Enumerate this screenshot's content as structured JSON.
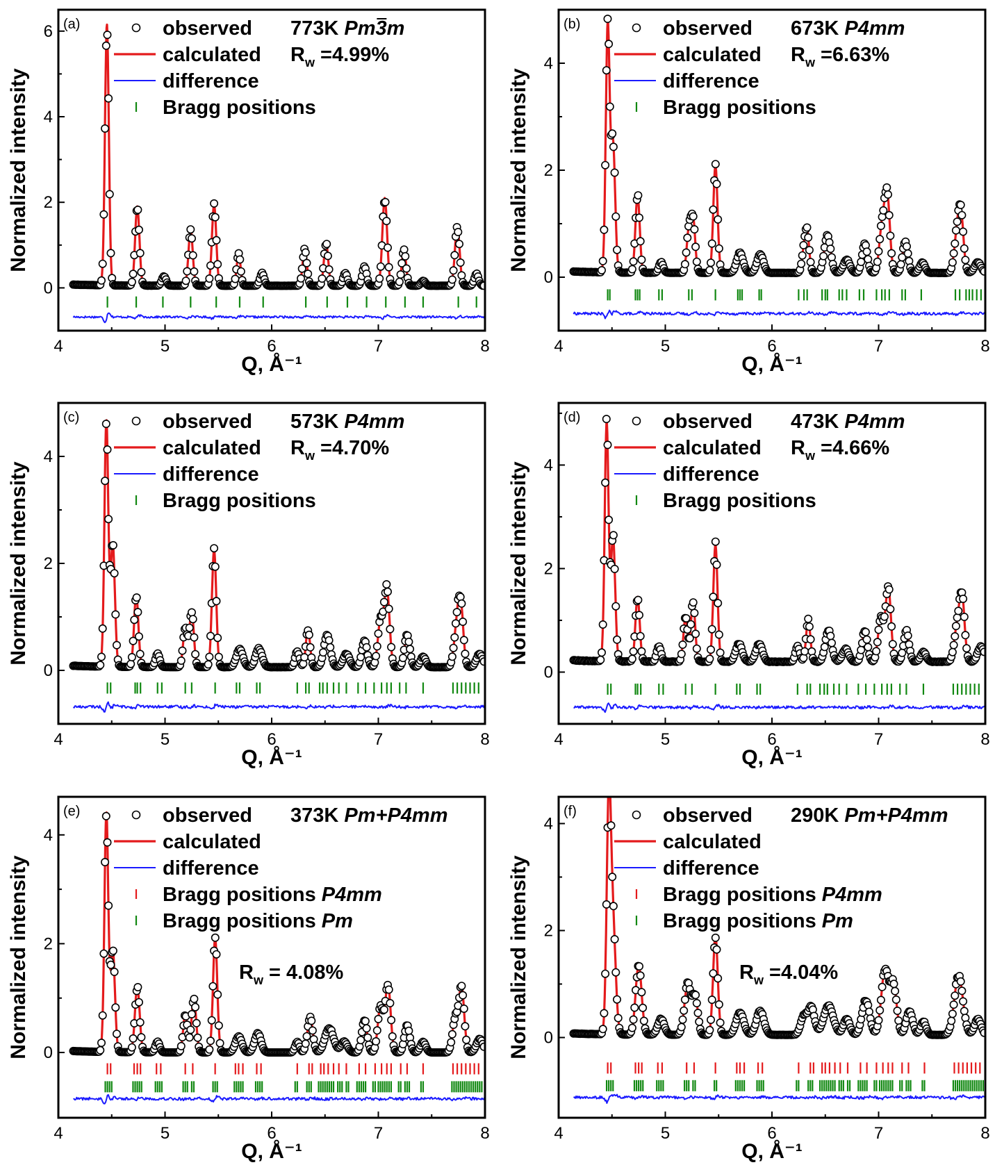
{
  "chart_data": [
    {
      "type": "line",
      "panel_label": "(a)",
      "temperature": "773K",
      "space_group": "Pm3m",
      "space_group_bar_char": "3",
      "rw_text": "=4.99%",
      "xlabel": "Q, Å⁻¹",
      "ylabel": "Normalized intensity",
      "xlim": [
        4,
        8
      ],
      "ylim": [
        -1.0,
        6.5
      ],
      "xticks": [
        4,
        5,
        6,
        7,
        8
      ],
      "yticks": [
        0,
        2,
        4,
        6
      ],
      "legend": [
        "observed",
        "calculated",
        "difference",
        "Bragg positions"
      ],
      "baseline": 0.05,
      "difference_offset": -0.68,
      "peaks": [
        [
          4.455,
          6.1,
          0.018
        ],
        [
          4.74,
          1.85,
          0.02
        ],
        [
          4.99,
          0.22,
          0.02
        ],
        [
          5.24,
          1.3,
          0.02
        ],
        [
          5.46,
          1.9,
          0.02
        ],
        [
          5.69,
          0.75,
          0.018
        ],
        [
          5.91,
          0.3,
          0.02
        ],
        [
          6.31,
          0.85,
          0.02
        ],
        [
          6.51,
          1.0,
          0.02
        ],
        [
          6.69,
          0.3,
          0.02
        ],
        [
          6.87,
          0.45,
          0.02
        ],
        [
          7.06,
          2.05,
          0.022
        ],
        [
          7.24,
          0.85,
          0.02
        ],
        [
          7.42,
          0.12,
          0.02
        ],
        [
          7.74,
          1.38,
          0.022
        ],
        [
          7.92,
          0.28,
          0.02
        ]
      ],
      "bragg": [
        [
          4.46,
          4.73,
          4.98,
          5.24,
          5.48,
          5.7,
          5.92,
          6.32,
          6.52,
          6.71,
          6.89,
          7.07,
          7.25,
          7.42,
          7.75,
          7.92
        ]
      ]
    },
    {
      "type": "line",
      "panel_label": "(b)",
      "temperature": "673K",
      "space_group": "P4mm",
      "rw_text": "=6.63%",
      "xlabel": "Q, Å⁻¹",
      "ylabel": "Normalized intensity",
      "xlim": [
        4,
        8
      ],
      "ylim": [
        -1.0,
        5.0
      ],
      "xticks": [
        4,
        5,
        6,
        7,
        8
      ],
      "yticks": [
        0,
        2,
        4
      ],
      "legend": [
        "observed",
        "calculated",
        "difference",
        "Bragg positions"
      ],
      "baseline": 0.08,
      "difference_offset": -0.68,
      "peaks": [
        [
          4.46,
          4.6,
          0.018
        ],
        [
          4.51,
          2.4,
          0.02
        ],
        [
          4.74,
          1.45,
          0.02
        ],
        [
          4.96,
          0.2,
          0.02
        ],
        [
          5.22,
          0.75,
          0.02
        ],
        [
          5.26,
          1.0,
          0.02
        ],
        [
          5.47,
          2.0,
          0.02
        ],
        [
          5.7,
          0.38,
          0.03
        ],
        [
          5.89,
          0.35,
          0.03
        ],
        [
          6.3,
          0.35,
          0.02
        ],
        [
          6.33,
          0.7,
          0.02
        ],
        [
          6.52,
          0.7,
          0.03
        ],
        [
          6.7,
          0.25,
          0.03
        ],
        [
          6.87,
          0.55,
          0.025
        ],
        [
          7.03,
          0.8,
          0.025
        ],
        [
          7.08,
          1.45,
          0.025
        ],
        [
          7.25,
          0.6,
          0.025
        ],
        [
          7.41,
          0.2,
          0.025
        ],
        [
          7.73,
          0.55,
          0.025
        ],
        [
          7.77,
          1.1,
          0.025
        ],
        [
          7.93,
          0.2,
          0.03
        ]
      ],
      "bragg": [
        [
          4.46,
          4.48,
          4.72,
          4.74,
          4.76,
          4.94,
          4.97,
          5.22,
          5.25,
          5.47,
          5.68,
          5.7,
          5.72,
          5.88,
          5.9,
          6.25,
          6.3,
          6.33,
          6.47,
          6.5,
          6.52,
          6.63,
          6.66,
          6.7,
          6.82,
          6.86,
          6.98,
          7.03,
          7.06,
          7.1,
          7.22,
          7.25,
          7.4,
          7.72,
          7.76,
          7.82,
          7.85,
          7.88,
          7.92,
          7.96
        ]
      ]
    },
    {
      "type": "line",
      "panel_label": "(c)",
      "temperature": "573K",
      "space_group": "P4mm",
      "rw_text": "=4.70%",
      "xlabel": "Q, Å⁻¹",
      "ylabel": "Normalized intensity",
      "xlim": [
        4,
        8
      ],
      "ylim": [
        -1.0,
        5.0
      ],
      "xticks": [
        4,
        5,
        6,
        7,
        8
      ],
      "yticks": [
        0,
        2,
        4
      ],
      "legend": [
        "observed",
        "calculated",
        "difference",
        "Bragg positions"
      ],
      "baseline": 0.06,
      "difference_offset": -0.68,
      "peaks": [
        [
          4.45,
          4.6,
          0.018
        ],
        [
          4.51,
          2.3,
          0.02
        ],
        [
          4.73,
          1.35,
          0.02
        ],
        [
          4.93,
          0.25,
          0.02
        ],
        [
          5.19,
          0.75,
          0.02
        ],
        [
          5.25,
          1.05,
          0.02
        ],
        [
          5.46,
          2.2,
          0.02
        ],
        [
          5.7,
          0.35,
          0.03
        ],
        [
          5.88,
          0.35,
          0.03
        ],
        [
          6.24,
          0.3,
          0.02
        ],
        [
          6.34,
          0.7,
          0.02
        ],
        [
          6.52,
          0.6,
          0.03
        ],
        [
          6.7,
          0.25,
          0.03
        ],
        [
          6.87,
          0.5,
          0.025
        ],
        [
          7.02,
          0.85,
          0.025
        ],
        [
          7.08,
          1.45,
          0.025
        ],
        [
          7.27,
          0.6,
          0.025
        ],
        [
          7.42,
          0.2,
          0.025
        ],
        [
          7.73,
          0.55,
          0.025
        ],
        [
          7.77,
          1.2,
          0.025
        ],
        [
          7.95,
          0.25,
          0.03
        ]
      ],
      "bragg": [
        [
          4.46,
          4.49,
          4.72,
          4.74,
          4.77,
          4.93,
          4.97,
          5.19,
          5.25,
          5.47,
          5.67,
          5.7,
          5.86,
          5.89,
          6.24,
          6.32,
          6.35,
          6.45,
          6.48,
          6.52,
          6.58,
          6.63,
          6.7,
          6.81,
          6.88,
          6.96,
          7.03,
          7.08,
          7.12,
          7.2,
          7.26,
          7.42,
          7.7,
          7.74,
          7.78,
          7.82,
          7.86,
          7.9,
          7.94
        ]
      ]
    },
    {
      "type": "line",
      "panel_label": "(d)",
      "temperature": "473K",
      "space_group": "P4mm",
      "rw_text": "=4.66%",
      "xlabel": "Q, Å⁻¹",
      "ylabel": "Normalized intensity",
      "xlim": [
        4,
        8
      ],
      "ylim": [
        -1.0,
        5.2
      ],
      "xticks": [
        4,
        5,
        6,
        7,
        8
      ],
      "yticks": [
        0,
        2,
        4
      ],
      "legend": [
        "observed",
        "calculated",
        "difference",
        "Bragg positions"
      ],
      "baseline": 0.2,
      "difference_offset": -0.68,
      "peaks": [
        [
          4.45,
          4.6,
          0.018
        ],
        [
          4.51,
          2.4,
          0.02
        ],
        [
          4.74,
          1.25,
          0.02
        ],
        [
          4.94,
          0.3,
          0.02
        ],
        [
          5.19,
          0.85,
          0.02
        ],
        [
          5.26,
          1.15,
          0.02
        ],
        [
          5.47,
          2.25,
          0.02
        ],
        [
          5.69,
          0.35,
          0.03
        ],
        [
          5.88,
          0.35,
          0.03
        ],
        [
          6.24,
          0.3,
          0.02
        ],
        [
          6.34,
          0.8,
          0.02
        ],
        [
          6.53,
          0.6,
          0.03
        ],
        [
          6.69,
          0.25,
          0.03
        ],
        [
          6.87,
          0.6,
          0.025
        ],
        [
          7.02,
          0.85,
          0.025
        ],
        [
          7.09,
          1.45,
          0.025
        ],
        [
          7.26,
          0.6,
          0.025
        ],
        [
          7.42,
          0.2,
          0.025
        ],
        [
          7.73,
          0.55,
          0.025
        ],
        [
          7.78,
          1.3,
          0.025
        ],
        [
          7.96,
          0.3,
          0.03
        ]
      ],
      "bragg": [
        [
          4.46,
          4.49,
          4.72,
          4.74,
          4.77,
          4.94,
          4.98,
          5.19,
          5.25,
          5.47,
          5.67,
          5.7,
          5.86,
          5.89,
          6.24,
          6.33,
          6.36,
          6.45,
          6.49,
          6.52,
          6.58,
          6.63,
          6.7,
          6.81,
          6.88,
          6.96,
          7.03,
          7.08,
          7.12,
          7.2,
          7.26,
          7.42,
          7.7,
          7.74,
          7.78,
          7.82,
          7.86,
          7.9,
          7.94
        ]
      ]
    },
    {
      "type": "line",
      "panel_label": "(e)",
      "temperature": "373K",
      "space_group": "Pm+P4mm",
      "rw_text": "R_w = 4.08%",
      "rw_prefix": "R",
      "rw_sub": "w",
      "rw_value": "= 4.08%",
      "xlabel": "Q, Å⁻¹",
      "ylabel": "Normalized intensity",
      "xlim": [
        4,
        8
      ],
      "ylim": [
        -1.2,
        4.7
      ],
      "xticks": [
        4,
        5,
        6,
        7,
        8
      ],
      "yticks": [
        0,
        2,
        4
      ],
      "legend": [
        "observed",
        "calculated",
        "difference",
        "Bragg positions P4mm",
        "Bragg positions Pm"
      ],
      "baseline": 0.0,
      "difference_offset": -0.85,
      "peaks": [
        [
          4.45,
          4.4,
          0.018
        ],
        [
          4.51,
          1.9,
          0.02
        ],
        [
          4.74,
          1.2,
          0.022
        ],
        [
          4.93,
          0.2,
          0.02
        ],
        [
          5.19,
          0.7,
          0.02
        ],
        [
          5.27,
          1.0,
          0.022
        ],
        [
          5.47,
          2.1,
          0.02
        ],
        [
          5.69,
          0.3,
          0.03
        ],
        [
          5.87,
          0.35,
          0.03
        ],
        [
          6.24,
          0.2,
          0.02
        ],
        [
          6.36,
          0.65,
          0.025
        ],
        [
          6.54,
          0.45,
          0.04
        ],
        [
          6.68,
          0.2,
          0.03
        ],
        [
          6.87,
          0.6,
          0.025
        ],
        [
          7.02,
          0.85,
          0.025
        ],
        [
          7.09,
          1.25,
          0.025
        ],
        [
          7.27,
          0.5,
          0.025
        ],
        [
          7.42,
          0.2,
          0.025
        ],
        [
          7.72,
          0.6,
          0.025
        ],
        [
          7.78,
          1.2,
          0.025
        ],
        [
          7.95,
          0.25,
          0.03
        ]
      ],
      "bragg": [
        [
          4.46,
          4.49,
          4.71,
          4.74,
          4.77,
          4.92,
          4.96,
          5.19,
          5.26,
          5.47,
          5.66,
          5.69,
          5.73,
          5.86,
          5.9,
          6.24,
          6.35,
          6.38,
          6.46,
          6.49,
          6.53,
          6.58,
          6.63,
          6.7,
          6.82,
          6.88,
          6.97,
          7.03,
          7.08,
          7.12,
          7.21,
          7.27,
          7.42,
          7.7,
          7.74,
          7.78,
          7.82,
          7.86,
          7.9,
          7.94
        ],
        [
          4.44,
          4.46,
          4.48,
          4.5,
          4.7,
          4.72,
          4.74,
          4.76,
          4.78,
          4.91,
          4.93,
          4.95,
          4.97,
          5.17,
          5.19,
          5.21,
          5.25,
          5.27,
          5.45,
          5.47,
          5.49,
          5.65,
          5.67,
          5.69,
          5.71,
          5.73,
          5.85,
          5.87,
          5.89,
          5.91,
          6.22,
          6.24,
          6.33,
          6.35,
          6.37,
          6.44,
          6.46,
          6.48,
          6.5,
          6.52,
          6.54,
          6.56,
          6.58,
          6.62,
          6.64,
          6.66,
          6.7,
          6.72,
          6.8,
          6.82,
          6.84,
          6.86,
          6.88,
          6.95,
          6.97,
          7.0,
          7.02,
          7.04,
          7.06,
          7.08,
          7.1,
          7.12,
          7.19,
          7.21,
          7.25,
          7.27,
          7.29,
          7.4,
          7.42,
          7.69,
          7.71,
          7.73,
          7.75,
          7.77,
          7.79,
          7.81,
          7.83,
          7.85,
          7.87,
          7.89,
          7.91,
          7.93,
          7.95,
          7.97
        ]
      ]
    },
    {
      "type": "line",
      "panel_label": "(f)",
      "temperature": "290K",
      "space_group": "Pm+P4mm",
      "rw_text": "R_w =4.04%",
      "rw_prefix": "R",
      "rw_sub": "w",
      "rw_value": "=4.04%",
      "xlabel": "Q, Å⁻¹",
      "ylabel": "Normalized intensity",
      "xlim": [
        4,
        8
      ],
      "ylim": [
        -1.5,
        4.5
      ],
      "xticks": [
        4,
        5,
        6,
        7,
        8
      ],
      "yticks": [
        0,
        2,
        4
      ],
      "legend": [
        "observed",
        "calculated",
        "difference",
        "Bragg positions P4mm",
        "Bragg positions Pm"
      ],
      "baseline": 0.05,
      "difference_offset": -1.12,
      "peaks": [
        [
          4.47,
          4.2,
          0.02
        ],
        [
          4.51,
          2.0,
          0.025
        ],
        [
          4.75,
          1.3,
          0.028
        ],
        [
          4.96,
          0.3,
          0.03
        ],
        [
          5.21,
          0.95,
          0.03
        ],
        [
          5.28,
          0.7,
          0.025
        ],
        [
          5.47,
          1.85,
          0.022
        ],
        [
          5.7,
          0.42,
          0.035
        ],
        [
          5.89,
          0.45,
          0.035
        ],
        [
          6.3,
          0.35,
          0.03
        ],
        [
          6.37,
          0.5,
          0.03
        ],
        [
          6.53,
          0.55,
          0.045
        ],
        [
          6.7,
          0.3,
          0.03
        ],
        [
          6.88,
          0.65,
          0.035
        ],
        [
          7.06,
          1.2,
          0.035
        ],
        [
          7.14,
          0.9,
          0.03
        ],
        [
          7.29,
          0.45,
          0.03
        ],
        [
          7.42,
          0.25,
          0.025
        ],
        [
          7.75,
          1.1,
          0.04
        ],
        [
          7.93,
          0.3,
          0.03
        ]
      ],
      "bragg": [
        [
          4.46,
          4.49,
          4.72,
          4.75,
          4.78,
          4.93,
          4.97,
          5.2,
          5.27,
          5.47,
          5.67,
          5.7,
          5.74,
          5.87,
          5.91,
          6.25,
          6.36,
          6.39,
          6.47,
          6.5,
          6.54,
          6.59,
          6.64,
          6.71,
          6.83,
          6.89,
          6.98,
          7.04,
          7.09,
          7.13,
          7.22,
          7.28,
          7.43,
          7.71,
          7.75,
          7.79,
          7.83,
          7.87,
          7.91,
          7.95
        ],
        [
          4.45,
          4.47,
          4.49,
          4.51,
          4.71,
          4.73,
          4.75,
          4.77,
          4.79,
          4.92,
          4.94,
          4.96,
          4.98,
          5.18,
          5.2,
          5.22,
          5.26,
          5.28,
          5.46,
          5.48,
          5.66,
          5.68,
          5.7,
          5.72,
          5.74,
          5.86,
          5.88,
          5.9,
          5.92,
          6.23,
          6.25,
          6.34,
          6.36,
          6.38,
          6.45,
          6.47,
          6.49,
          6.51,
          6.53,
          6.55,
          6.57,
          6.59,
          6.63,
          6.65,
          6.67,
          6.71,
          6.73,
          6.81,
          6.83,
          6.85,
          6.87,
          6.89,
          6.96,
          6.98,
          7.01,
          7.03,
          7.05,
          7.07,
          7.09,
          7.11,
          7.13,
          7.2,
          7.22,
          7.26,
          7.28,
          7.3,
          7.41,
          7.43,
          7.7,
          7.72,
          7.74,
          7.76,
          7.78,
          7.8,
          7.82,
          7.84,
          7.86,
          7.88,
          7.9,
          7.92,
          7.94,
          7.96,
          7.98
        ]
      ]
    }
  ]
}
